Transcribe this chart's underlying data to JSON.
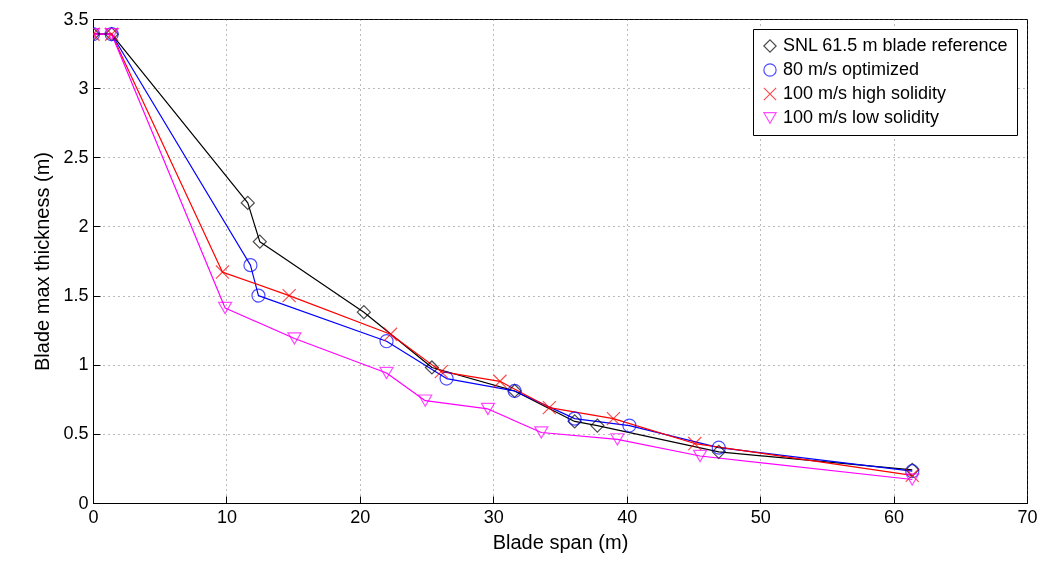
{
  "chart_data": {
    "type": "line",
    "xlabel": "Blade span (m)",
    "ylabel": "Blade max thickness (m)",
    "xlim": [
      0,
      70
    ],
    "xticks": [
      0,
      10,
      20,
      30,
      40,
      50,
      60,
      70
    ],
    "ylim": [
      0,
      3.5
    ],
    "yticks": [
      0,
      0.5,
      1,
      1.5,
      2,
      2.5,
      3,
      3.5
    ],
    "grid": true,
    "legend": "top right",
    "line_style": "solid",
    "series": [
      {
        "name": "SNL 61.5 m blade reference",
        "color": "#000000",
        "marker": "diamond",
        "x": [
          0,
          1.4,
          11.6,
          12.5,
          20.3,
          25.4,
          31.6,
          36.1,
          37.8,
          46.9,
          61.4
        ],
        "values": [
          3.39,
          3.39,
          2.17,
          1.89,
          1.38,
          0.98,
          0.81,
          0.59,
          0.56,
          0.37,
          0.24
        ]
      },
      {
        "name": "80 m/s optimized",
        "color": "#0000ff",
        "marker": "circle",
        "x": [
          0,
          1.4,
          11.8,
          12.4,
          22.0,
          26.5,
          31.6,
          36.1,
          40.2,
          46.9,
          61.4
        ],
        "values": [
          3.39,
          3.39,
          1.72,
          1.5,
          1.17,
          0.9,
          0.81,
          0.61,
          0.56,
          0.4,
          0.23
        ]
      },
      {
        "name": "100 m/s high solidity",
        "color": "#ff0000",
        "marker": "cross",
        "x": [
          0,
          1.4,
          9.7,
          14.7,
          22.3,
          26.1,
          30.5,
          34.2,
          39.0,
          45.1,
          61.4
        ],
        "values": [
          3.39,
          3.39,
          1.67,
          1.5,
          1.22,
          0.95,
          0.88,
          0.69,
          0.61,
          0.43,
          0.2
        ]
      },
      {
        "name": "100 m/s low solidity",
        "color": "#ff00ff",
        "marker": "triangle",
        "x": [
          0,
          1.4,
          9.9,
          15.1,
          22.0,
          24.9,
          29.6,
          33.6,
          39.3,
          45.5,
          61.4
        ],
        "values": [
          3.39,
          3.39,
          1.41,
          1.19,
          0.94,
          0.74,
          0.68,
          0.51,
          0.46,
          0.34,
          0.17
        ]
      }
    ]
  }
}
